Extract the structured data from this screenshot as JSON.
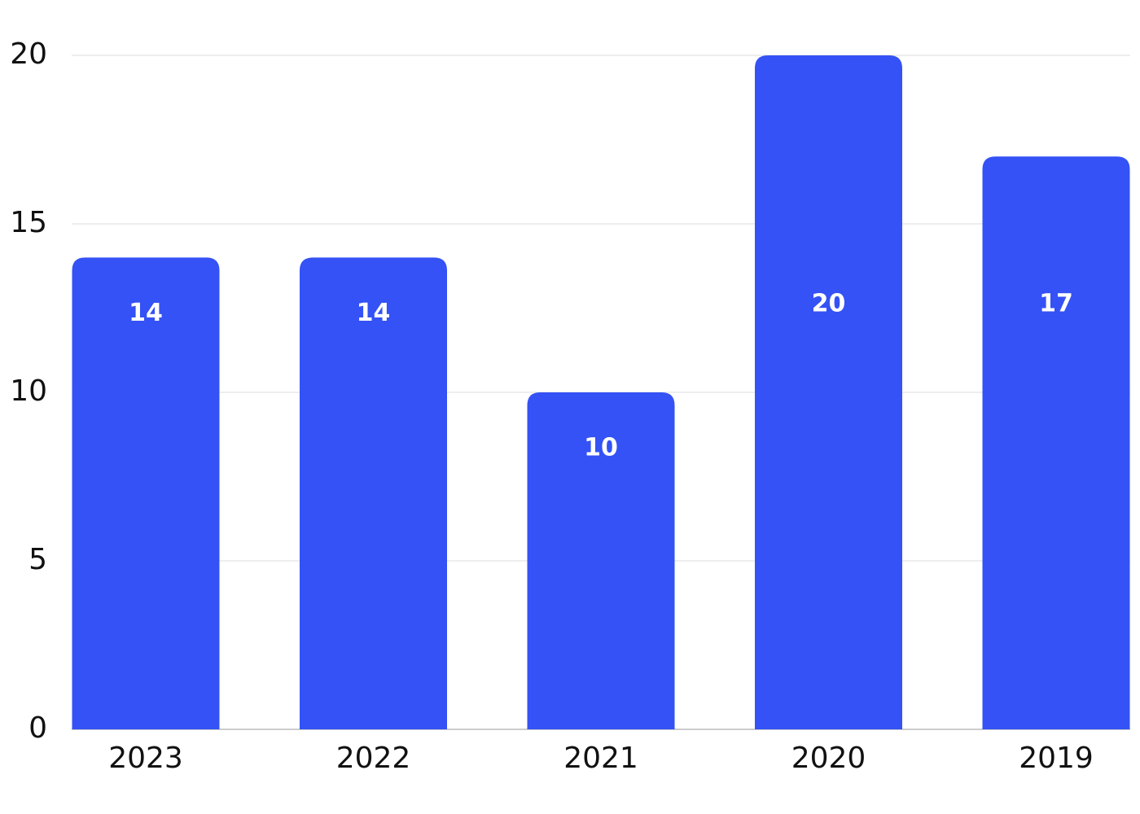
{
  "chart_data": {
    "type": "bar",
    "categories": [
      "2023",
      "2022",
      "2021",
      "2020",
      "2019"
    ],
    "values": [
      14,
      14,
      10,
      20,
      17
    ],
    "color": "#3452f5",
    "ylim": [
      0,
      20
    ],
    "yticks": [
      0,
      5,
      10,
      15,
      20
    ],
    "grid": true
  }
}
